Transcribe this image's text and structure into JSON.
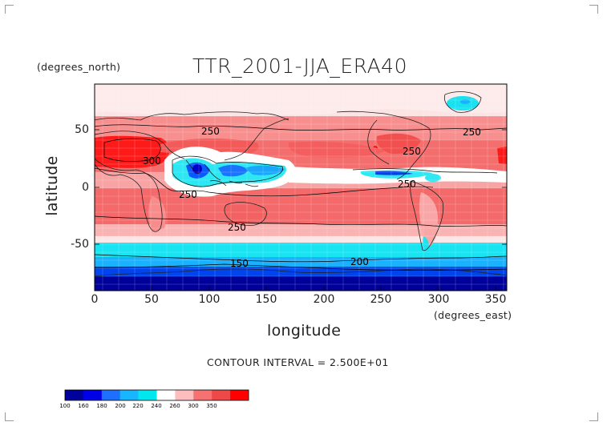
{
  "title": "TTR_2001-JJA_ERA40",
  "y_units": "(degrees_north)",
  "x_units": "(degrees_east)",
  "xlabel": "longitude",
  "ylabel": "latitude",
  "contour_interval": "CONTOUR INTERVAL = 2.500E+01",
  "x_ticks": [
    "0",
    "50",
    "100",
    "150",
    "200",
    "250",
    "300",
    "350"
  ],
  "y_ticks": [
    "50",
    "0",
    "-50"
  ],
  "contour_labels": [
    "250",
    "300",
    "250",
    "250",
    "250",
    "250",
    "250",
    "200",
    "150"
  ],
  "legend": {
    "labels": [
      "100",
      "160",
      "180",
      "200",
      "220",
      "240",
      "260",
      "300",
      "350"
    ],
    "colors": [
      "#00009a",
      "#0000e6",
      "#1f6fff",
      "#19b6ff",
      "#00e8ee",
      "#ffffff",
      "#fbbdbd",
      "#f67272",
      "#ee4848",
      "#ff0000"
    ]
  },
  "chart_data": {
    "type": "heatmap",
    "title": "TTR_2001-JJA_ERA40",
    "xlabel": "longitude",
    "ylabel": "latitude",
    "x_units": "degrees_east",
    "y_units": "degrees_north",
    "xlim": [
      0,
      360
    ],
    "ylim": [
      -90,
      90
    ],
    "x_ticks": [
      0,
      50,
      100,
      150,
      200,
      250,
      300,
      350
    ],
    "y_ticks": [
      50,
      0,
      -50
    ],
    "levels": [
      100,
      160,
      180,
      200,
      220,
      240,
      260,
      300,
      350
    ],
    "contour_interval": 25
  }
}
